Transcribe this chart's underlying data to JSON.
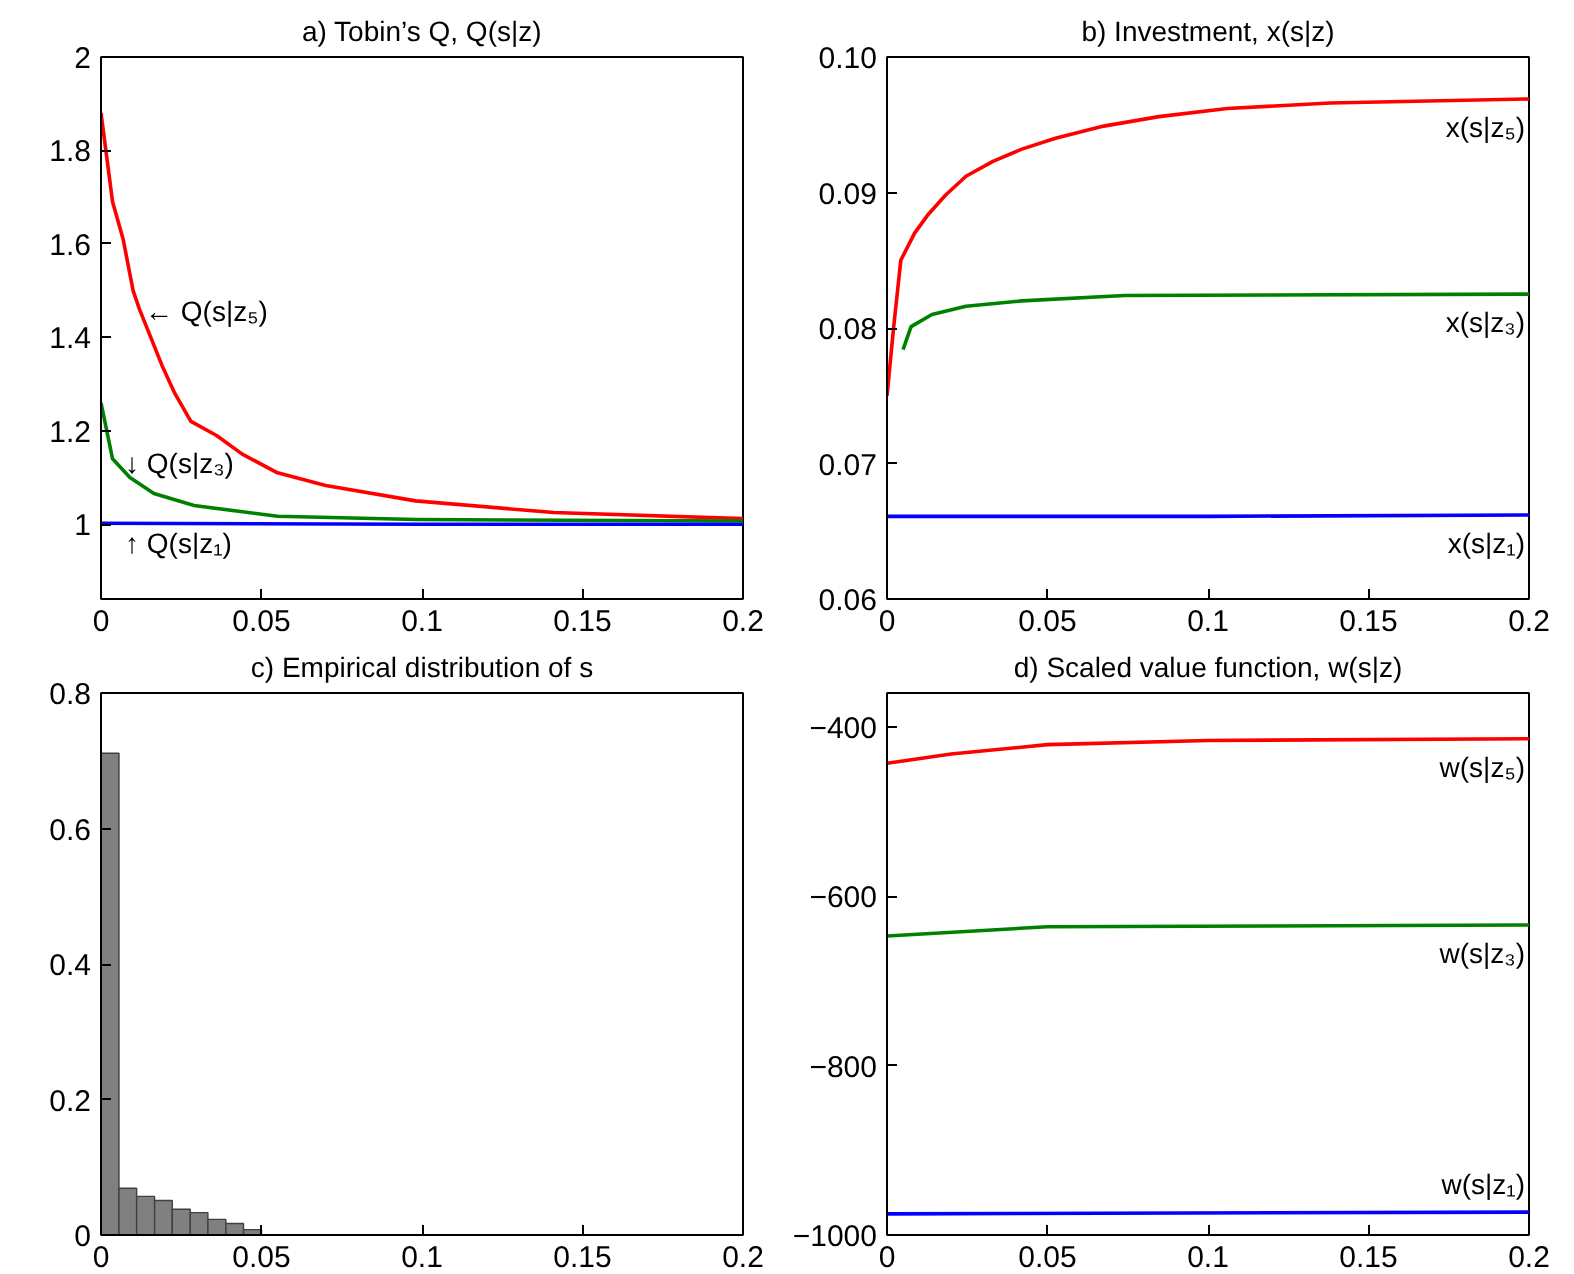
{
  "chart_data": [
    {
      "type": "line",
      "title": "a) Tobin’s Q, Q(s|z)",
      "xlim": [
        0,
        0.2
      ],
      "ylim": [
        0.84,
        2
      ],
      "xticks": [
        0,
        0.05,
        0.1,
        0.15,
        0.2
      ],
      "yticks": [
        1,
        1.2,
        1.4,
        1.6,
        1.8,
        2
      ],
      "series": [
        {
          "color": "#ff0000",
          "x": [
            0,
            0.0036,
            0.0069,
            0.01,
            0.012,
            0.019,
            0.023,
            0.028,
            0.036,
            0.044,
            0.055,
            0.07,
            0.098,
            0.141,
            0.2
          ],
          "values": [
            1.88,
            1.69,
            1.61,
            1.5,
            1.46,
            1.34,
            1.28,
            1.22,
            1.19,
            1.15,
            1.11,
            1.083,
            1.05,
            1.025,
            1.012
          ]
        },
        {
          "color": "#008000",
          "x": [
            0,
            0.0036,
            0.009,
            0.0165,
            0.029,
            0.055,
            0.098,
            0.2
          ],
          "values": [
            1.26,
            1.14,
            1.1,
            1.066,
            1.04,
            1.017,
            1.01,
            1.007
          ]
        },
        {
          "color": "#0000ff",
          "x": [
            0,
            0.1,
            0.2
          ],
          "values": [
            1.002,
            1.0,
            1.0
          ]
        }
      ],
      "annotations": [
        "← Q(s|z₅)",
        "↓ Q(s|z₃)",
        "↑ Q(s|z₁)"
      ]
    },
    {
      "type": "line",
      "title": "b) Investment, x(s|z)",
      "xlim": [
        0,
        0.2
      ],
      "ylim": [
        0.06,
        0.1
      ],
      "xticks": [
        0,
        0.05,
        0.1,
        0.15,
        0.2
      ],
      "yticks": [
        0.06,
        0.07,
        0.08,
        0.09,
        {
          "value": 0.1,
          "label": "0.10"
        }
      ],
      "series": [
        {
          "name": "x(s|z₅)",
          "color": "#ff0000",
          "x": [
            0,
            0.002,
            0.0043,
            0.0086,
            0.0129,
            0.0182,
            0.0246,
            0.033,
            0.042,
            0.0525,
            0.0675,
            0.0847,
            0.106,
            0.138,
            0.2
          ],
          "values": [
            0.075,
            0.0799,
            0.085,
            0.087,
            0.0884,
            0.0898,
            0.0912,
            0.0923,
            0.0932,
            0.094,
            0.0949,
            0.0956,
            0.0962,
            0.0966,
            0.0969
          ]
        },
        {
          "name": "x(s|z₃)",
          "color": "#008000",
          "x": [
            0.005,
            0.0075,
            0.014,
            0.0246,
            0.042,
            0.074,
            0.2
          ],
          "values": [
            0.0784,
            0.0801,
            0.081,
            0.0816,
            0.082,
            0.0824,
            0.0825
          ]
        },
        {
          "name": "x(s|z₁)",
          "color": "#0000ff",
          "x": [
            0,
            0.1,
            0.2
          ],
          "values": [
            0.0661,
            0.0661,
            0.0662
          ]
        }
      ]
    },
    {
      "type": "histogram",
      "title": "c) Empirical distribution of s",
      "xlim": [
        0,
        0.2
      ],
      "ylim": [
        0,
        0.8
      ],
      "xticks": [
        0,
        0.05,
        0.1,
        0.15,
        0.2
      ],
      "yticks": [
        0,
        0.2,
        0.4,
        0.6,
        0.8
      ],
      "color": "#808080",
      "bins": [
        0,
        0.0056,
        0.0111,
        0.0167,
        0.0222,
        0.0278,
        0.0333,
        0.0389,
        0.0444,
        0.05
      ],
      "values": [
        0.711,
        0.069,
        0.057,
        0.051,
        0.038,
        0.033,
        0.023,
        0.017,
        0.008
      ]
    },
    {
      "type": "line",
      "title": "d) Scaled value function, w(s|z)",
      "xlim": [
        0,
        0.2
      ],
      "ylim": [
        -1000,
        -360
      ],
      "xticks": [
        0,
        0.05,
        0.1,
        0.15,
        0.2
      ],
      "yticks": [
        {
          "value": -1000,
          "label": "−1000"
        },
        {
          "value": -800,
          "label": "−800"
        },
        {
          "value": -600,
          "label": "−600"
        },
        {
          "value": -400,
          "label": "−400"
        }
      ],
      "series": [
        {
          "name": "w(s|z₅)",
          "color": "#ff0000",
          "x": [
            0,
            0.02,
            0.05,
            0.1,
            0.2
          ],
          "values": [
            -443,
            -432,
            -421,
            -416,
            -414
          ]
        },
        {
          "name": "w(s|z₃)",
          "color": "#008000",
          "x": [
            0,
            0.05,
            0.2
          ],
          "values": [
            -647,
            -636,
            -634
          ]
        },
        {
          "name": "w(s|z₁)",
          "color": "#0000ff",
          "x": [
            0,
            0.2
          ],
          "values": [
            -975,
            -973
          ]
        }
      ]
    }
  ]
}
